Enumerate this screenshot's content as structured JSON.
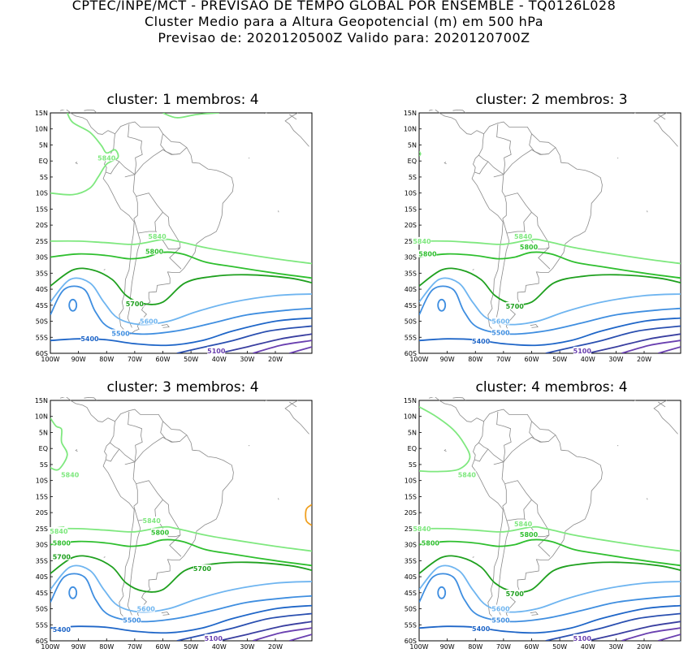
{
  "header": {
    "line1": "CPTEC/INPE/MCT - PREVISAO DE TEMPO GLOBAL POR ENSEMBLE - TQ0126L028",
    "line2": "Cluster Medio para a Altura Geopotencial (m) em 500 hPa",
    "line3": "Previsao de: 2020120500Z    Valido para: 2020120700Z"
  },
  "axes": {
    "lat_labels": [
      "15N",
      "10N",
      "5N",
      "EQ",
      "5S",
      "10S",
      "15S",
      "20S",
      "25S",
      "30S",
      "35S",
      "40S",
      "45S",
      "50S",
      "55S",
      "60S"
    ],
    "lon_labels": [
      "100W",
      "90W",
      "80W",
      "70W",
      "60W",
      "50W",
      "40W",
      "30W",
      "20W"
    ]
  },
  "panels": [
    {
      "title": "cluster: 1   membros: 4",
      "labels": [
        "5840",
        "5840",
        "5800",
        "5700",
        "5600",
        "5500",
        "5400",
        "5100"
      ]
    },
    {
      "title": "cluster: 2   membros: 3",
      "labels": [
        "5840",
        "5840",
        "5800",
        "5800",
        "5700",
        "5600",
        "5500",
        "5400",
        "5100"
      ]
    },
    {
      "title": "cluster: 3   membros: 4",
      "labels": [
        "5840",
        "5840",
        "5840",
        "5800",
        "5800",
        "5700",
        "5700",
        "5600",
        "5500",
        "5400",
        "5100"
      ]
    },
    {
      "title": "cluster: 4   membros: 4",
      "labels": [
        "5840",
        "5840",
        "5840",
        "5800",
        "5800",
        "5700",
        "5600",
        "5500",
        "5400",
        "5100"
      ]
    }
  ],
  "colors": {
    "c5840": "#7fe87f",
    "c5800": "#2fbf2f",
    "c5700": "#1fa01f",
    "c5600": "#6fb5f0",
    "c5500": "#3f8ee0",
    "c5400": "#1f66c8",
    "c5300": "#2a4fb0",
    "c5200": "#3a3fa0",
    "c5100": "#6a40b0",
    "warm": "#f0a020",
    "coast": "#8a8a8a"
  }
}
